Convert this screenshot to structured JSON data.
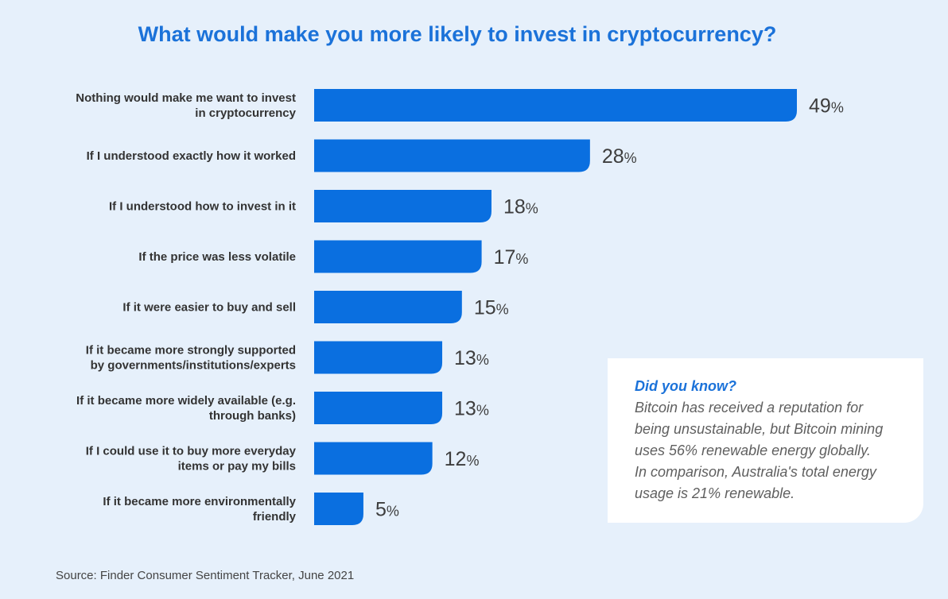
{
  "chart_data": {
    "type": "bar",
    "orientation": "horizontal",
    "title": "What would make you more likely to invest in cryptocurrency?",
    "categories": [
      [
        "Nothing would make me want to invest",
        "in cryptocurrency"
      ],
      [
        "If I understood exactly how it worked"
      ],
      [
        "If I understood how to invest in it"
      ],
      [
        "If the price was less volatile"
      ],
      [
        "If it were easier to buy and sell"
      ],
      [
        "If it became more strongly supported",
        "by governments/institutions/experts"
      ],
      [
        "If it became more widely available (e.g.",
        "through banks)"
      ],
      [
        "If I could use it to buy more everyday",
        "items or pay my bills"
      ],
      [
        "If it became more environmentally",
        "friendly"
      ]
    ],
    "values": [
      49,
      28,
      18,
      17,
      15,
      13,
      13,
      12,
      5
    ],
    "value_suffix": "%",
    "xlim": [
      0,
      49
    ],
    "grid": false,
    "legend": "none",
    "bar_color": "#0a6fe0"
  },
  "info_box": {
    "title": "Did you know?",
    "lines": [
      "Bitcoin has received a reputation for",
      "being unsustainable, but Bitcoin mining",
      "uses 56% renewable energy globally.",
      "In comparison, Australia's total energy",
      "usage is 21% renewable."
    ]
  },
  "source": "Source: Finder Consumer Sentiment Tracker, June 2021"
}
